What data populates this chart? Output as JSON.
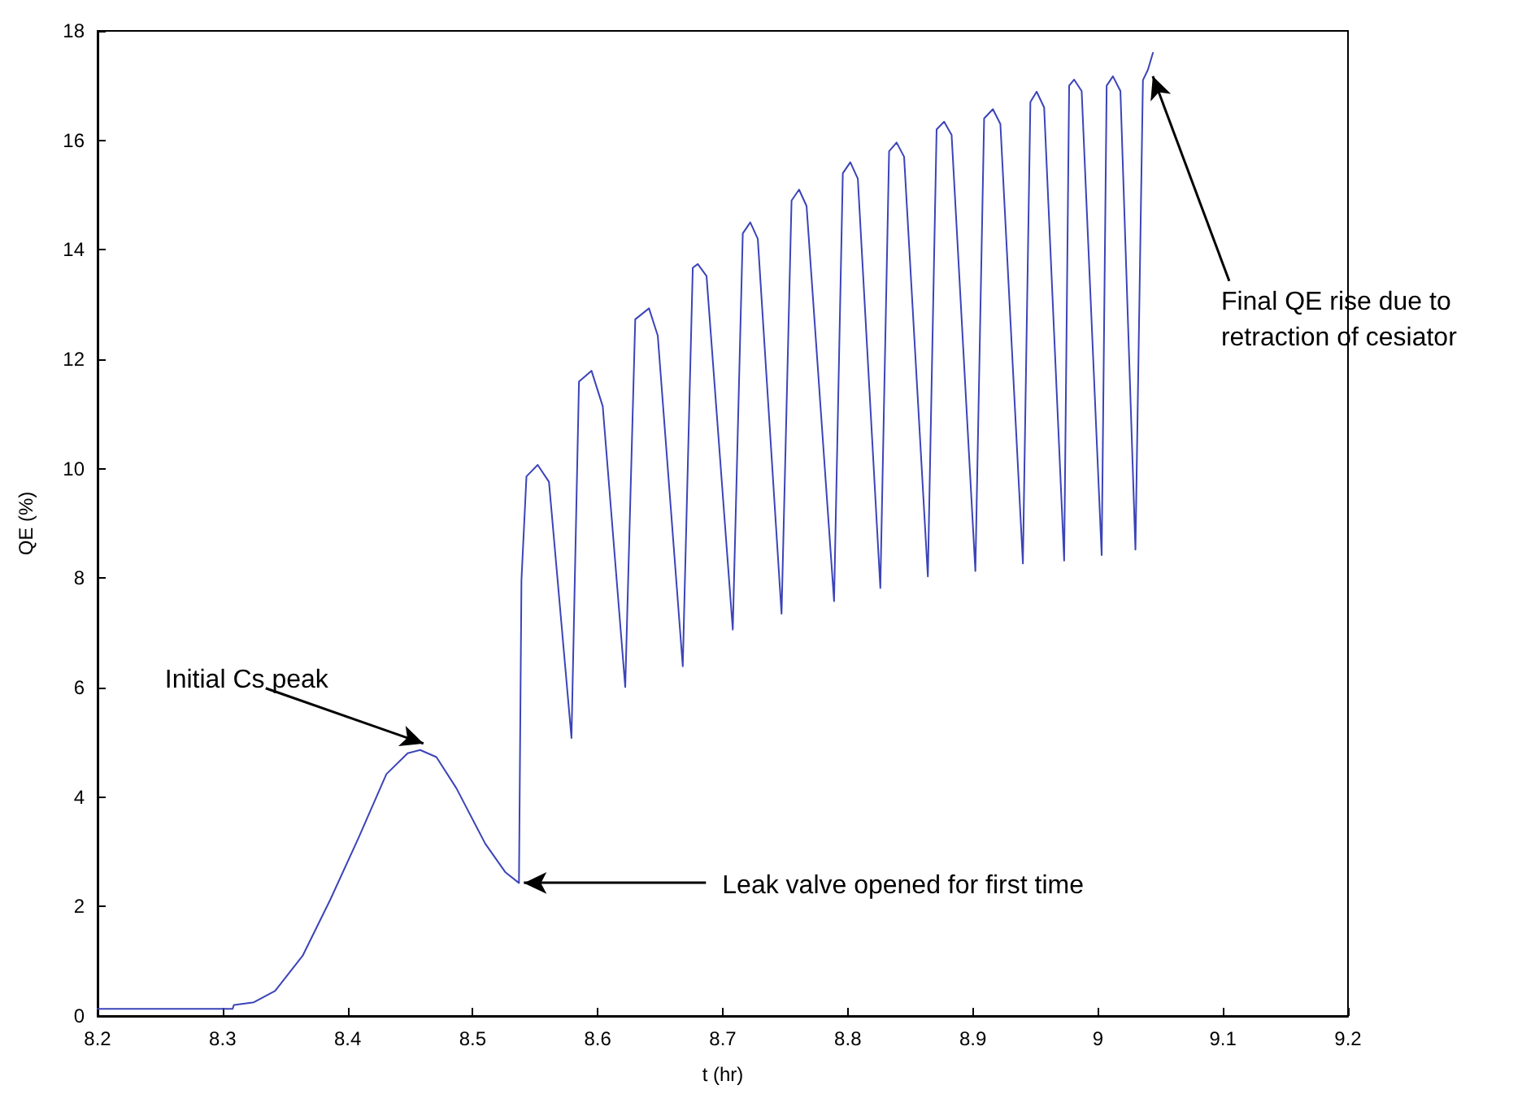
{
  "chart_data": {
    "type": "line",
    "xlabel": "t (hr)",
    "ylabel": "QE (%)",
    "xlim": [
      8.2,
      9.2
    ],
    "xticks": [
      8.2,
      8.3,
      8.4,
      8.5,
      8.6,
      8.7,
      8.8,
      8.9,
      9,
      9.1,
      9.2
    ],
    "ylim": [
      0,
      18
    ],
    "yticks": [
      0,
      2,
      4,
      6,
      8,
      10,
      12,
      14,
      16,
      18
    ],
    "grid": false,
    "marker": "none",
    "line_style": "solid",
    "series": [
      {
        "color": "#3b44b8",
        "x": [
          8.2,
          8.308,
          8.309,
          8.325,
          8.342,
          8.364,
          8.386,
          8.409,
          8.431,
          8.448,
          8.458,
          8.471,
          8.487,
          8.51,
          8.526,
          8.537,
          8.539,
          8.543,
          8.552,
          8.561,
          8.579,
          8.585,
          8.595,
          8.604,
          8.622,
          8.63,
          8.641,
          8.648,
          8.668,
          8.676,
          8.68,
          8.687,
          8.708,
          8.716,
          8.722,
          8.728,
          8.747,
          8.755,
          8.761,
          8.767,
          8.789,
          8.796,
          8.802,
          8.808,
          8.826,
          8.833,
          8.839,
          8.845,
          8.864,
          8.871,
          8.877,
          8.883,
          8.902,
          8.909,
          8.916,
          8.922,
          8.94,
          8.946,
          8.951,
          8.957,
          8.973,
          8.977,
          8.981,
          8.987,
          9.003,
          9.007,
          9.012,
          9.018,
          9.03,
          9.036,
          9.04,
          9.044
        ],
        "values": [
          0.13,
          0.13,
          0.2,
          0.25,
          0.46,
          1.1,
          2.12,
          3.27,
          4.42,
          4.8,
          4.86,
          4.73,
          4.16,
          3.15,
          2.63,
          2.43,
          7.97,
          9.86,
          10.07,
          9.76,
          5.08,
          11.59,
          11.79,
          11.14,
          6.01,
          12.73,
          12.93,
          12.43,
          6.39,
          13.67,
          13.74,
          13.52,
          7.06,
          14.3,
          14.5,
          14.2,
          7.35,
          14.9,
          15.1,
          14.8,
          7.58,
          15.4,
          15.6,
          15.3,
          7.82,
          15.8,
          15.96,
          15.7,
          8.03,
          16.2,
          16.34,
          16.1,
          8.13,
          16.4,
          16.57,
          16.3,
          8.27,
          16.7,
          16.89,
          16.6,
          8.32,
          17.0,
          17.11,
          16.9,
          8.42,
          17.0,
          17.17,
          16.9,
          8.52,
          17.1,
          17.29,
          17.6
        ]
      }
    ],
    "annotations": [
      {
        "text": "Initial Cs peak",
        "x": 8.458,
        "y": 4.86
      },
      {
        "text": "Leak valve opened for first time",
        "x": 8.537,
        "y": 2.43
      },
      {
        "text": "Final QE rise due to retraction of cesiator",
        "x": 9.04,
        "y": 17.29
      }
    ]
  }
}
